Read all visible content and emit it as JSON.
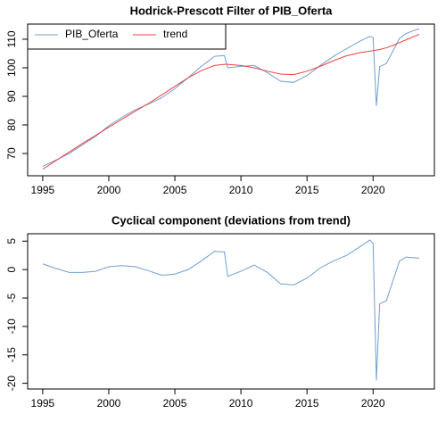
{
  "chart_data": [
    {
      "type": "line",
      "title": "Hodrick-Prescott Filter of PIB_Oferta",
      "x": [
        1995,
        1996,
        1997,
        1998,
        1999,
        2000,
        2001,
        2002,
        2003,
        2004,
        2005,
        2006,
        2007,
        2008,
        2008.75,
        2009,
        2010,
        2011,
        2012,
        2013,
        2014,
        2015,
        2016,
        2017,
        2018,
        2019,
        2019.75,
        2020,
        2020.25,
        2020.5,
        2021,
        2021.5,
        2022,
        2022.5,
        2023,
        2023.5
      ],
      "series": [
        {
          "name": "PIB_Oferta",
          "color": "#6f9fd0",
          "values": [
            65.5,
            67.7,
            70,
            73,
            76,
            79.7,
            82.7,
            85.3,
            87.3,
            89.5,
            92.7,
            96.5,
            100.5,
            104,
            104.3,
            100,
            100.5,
            100.8,
            98.3,
            95.3,
            94.9,
            97.3,
            100.8,
            104,
            106.7,
            109.3,
            111,
            110.6,
            86.7,
            100.4,
            101.5,
            105.8,
            110.3,
            112,
            112.9,
            113.7
          ]
        },
        {
          "name": "trend",
          "color": "#f04040",
          "values": [
            64.5,
            67.5,
            70.5,
            73.5,
            76.3,
            79.2,
            82,
            84.8,
            87.5,
            90.5,
            93.5,
            96.5,
            99,
            100.8,
            101.2,
            101.2,
            100.8,
            100,
            98.8,
            97.8,
            97.6,
            98.8,
            100.5,
            102.5,
            104.2,
            105.3,
            105.8,
            106,
            106.2,
            106.4,
            107,
            107.8,
            108.8,
            109.8,
            110.8,
            111.7
          ]
        }
      ],
      "xlim": [
        1993.86,
        2024.64
      ],
      "xticks": [
        1995,
        2000,
        2005,
        2010,
        2015,
        2020
      ],
      "ylim": [
        62.2,
        115.3
      ],
      "yticks": [
        70,
        80,
        90,
        100,
        110
      ],
      "legend": "topleft"
    },
    {
      "type": "line",
      "title": "Cyclical component (deviations from trend)",
      "x": [
        1995,
        1996,
        1997,
        1998,
        1999,
        2000,
        2001,
        2002,
        2003,
        2004,
        2005,
        2006,
        2007,
        2008,
        2008.75,
        2009,
        2010,
        2011,
        2012,
        2013,
        2014,
        2015,
        2016,
        2017,
        2018,
        2019,
        2019.75,
        2020,
        2020.25,
        2020.5,
        2021,
        2021.5,
        2022,
        2022.5,
        2023,
        2023.5
      ],
      "values": [
        1,
        0.2,
        -0.5,
        -0.5,
        -0.3,
        0.5,
        0.7,
        0.5,
        -0.2,
        -1,
        -0.8,
        0,
        1.5,
        3.2,
        3.1,
        -1.2,
        -0.3,
        0.8,
        -0.5,
        -2.5,
        -2.7,
        -1.5,
        0.3,
        1.5,
        2.5,
        4,
        5.2,
        4.6,
        -19.5,
        -6,
        -5.5,
        -2,
        1.5,
        2.2,
        2.1,
        2
      ],
      "color": "#6f9fd0",
      "xlim": [
        1993.86,
        2024.64
      ],
      "xticks": [
        1995,
        2000,
        2005,
        2010,
        2015,
        2020
      ],
      "ylim": [
        -21,
        6.3
      ],
      "yticks": [
        -20,
        -15,
        -10,
        -5,
        0,
        5
      ]
    }
  ]
}
